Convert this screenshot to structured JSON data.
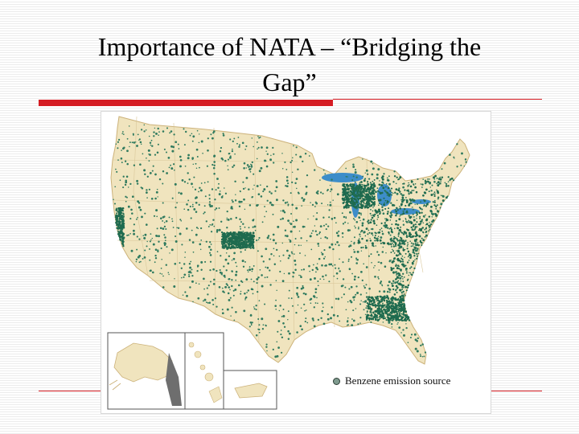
{
  "slide": {
    "title_line1": "Importance of NATA – “Bridging the",
    "title_line2": "Gap”"
  },
  "map": {
    "legend_label": "Benzene emission source",
    "insets": [
      "Alaska",
      "Hawaii",
      "Puerto Rico"
    ],
    "colors": {
      "land": "#f0e4be",
      "dot": "#2f7a5e",
      "dot_dense": "#1f6b4f",
      "border": "#d9c79a",
      "inset_gray": "#6e6e6e",
      "accent_red": "#d51d24"
    }
  }
}
